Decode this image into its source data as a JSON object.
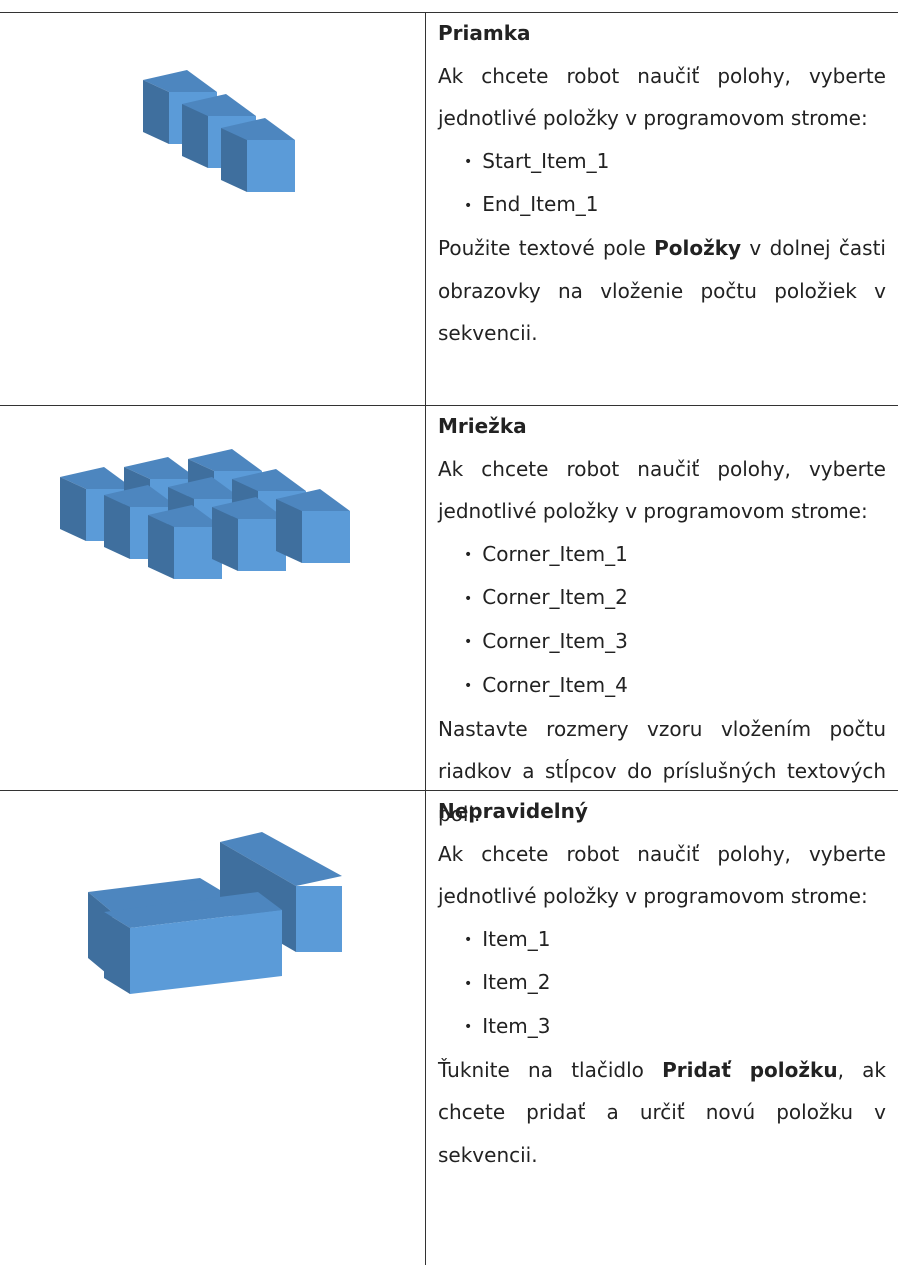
{
  "rows": [
    {
      "title": "Priamka",
      "intro": "Ak chcete robot naučiť polohy, vyberte jednotlivé položky v programovom strome:",
      "items": [
        "Start_Item_1",
        "End_Item_1"
      ],
      "note": [
        "Použite textové pole ",
        "Položky",
        " v dolnej časti obrazovky na vloženie počtu položiek v sekvencii."
      ]
    },
    {
      "title": "Mriežka",
      "intro": "Ak chcete robot naučiť polohy, vyberte jednotlivé položky v programovom strome:",
      "items": [
        "Corner_Item_1",
        "Corner_Item_2",
        "Corner_Item_3",
        "Corner_Item_4"
      ],
      "note": [
        "Nastavte rozmery vzoru vložením počtu riadkov a stĺpcov do príslušných textových poli."
      ]
    },
    {
      "title": "Nepravidelný",
      "intro": "Ak chcete robot naučiť polohy, vyberte jednotlivé položky v programovom strome:",
      "items": [
        "Item_1",
        "Item_2",
        "Item_3"
      ],
      "note": [
        "Ťuknite na tlačidlo ",
        "Pridať položku",
        ", ak chcete pridať a určiť novú položku v sekvencii."
      ]
    }
  ]
}
